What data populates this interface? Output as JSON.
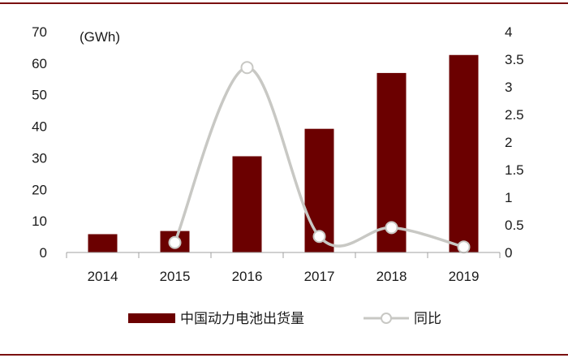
{
  "chart_data": {
    "type": "bar",
    "unit_label": "(GWh)",
    "categories": [
      "2014",
      "2015",
      "2016",
      "2017",
      "2018",
      "2019"
    ],
    "series": [
      {
        "name": "中国动力电池出货量",
        "type": "bar",
        "axis": "left",
        "color": "#6b0000",
        "values": [
          5.8,
          6.8,
          30.5,
          39.2,
          56.9,
          62.6
        ]
      },
      {
        "name": "同比",
        "type": "line",
        "axis": "right",
        "color": "#c8c8c4",
        "values": [
          null,
          0.18,
          3.35,
          0.29,
          0.45,
          0.1
        ]
      }
    ],
    "y_left": {
      "min": 0,
      "max": 70,
      "ticks": [
        "0",
        "10",
        "20",
        "30",
        "40",
        "50",
        "60",
        "70"
      ]
    },
    "y_right": {
      "min": 0,
      "max": 4,
      "ticks": [
        "0",
        "0.5",
        "1",
        "1.5",
        "2",
        "2.5",
        "3",
        "3.5",
        "4"
      ]
    },
    "legend_position": "bottom",
    "grid": false,
    "frame_color": "#7a1010"
  }
}
